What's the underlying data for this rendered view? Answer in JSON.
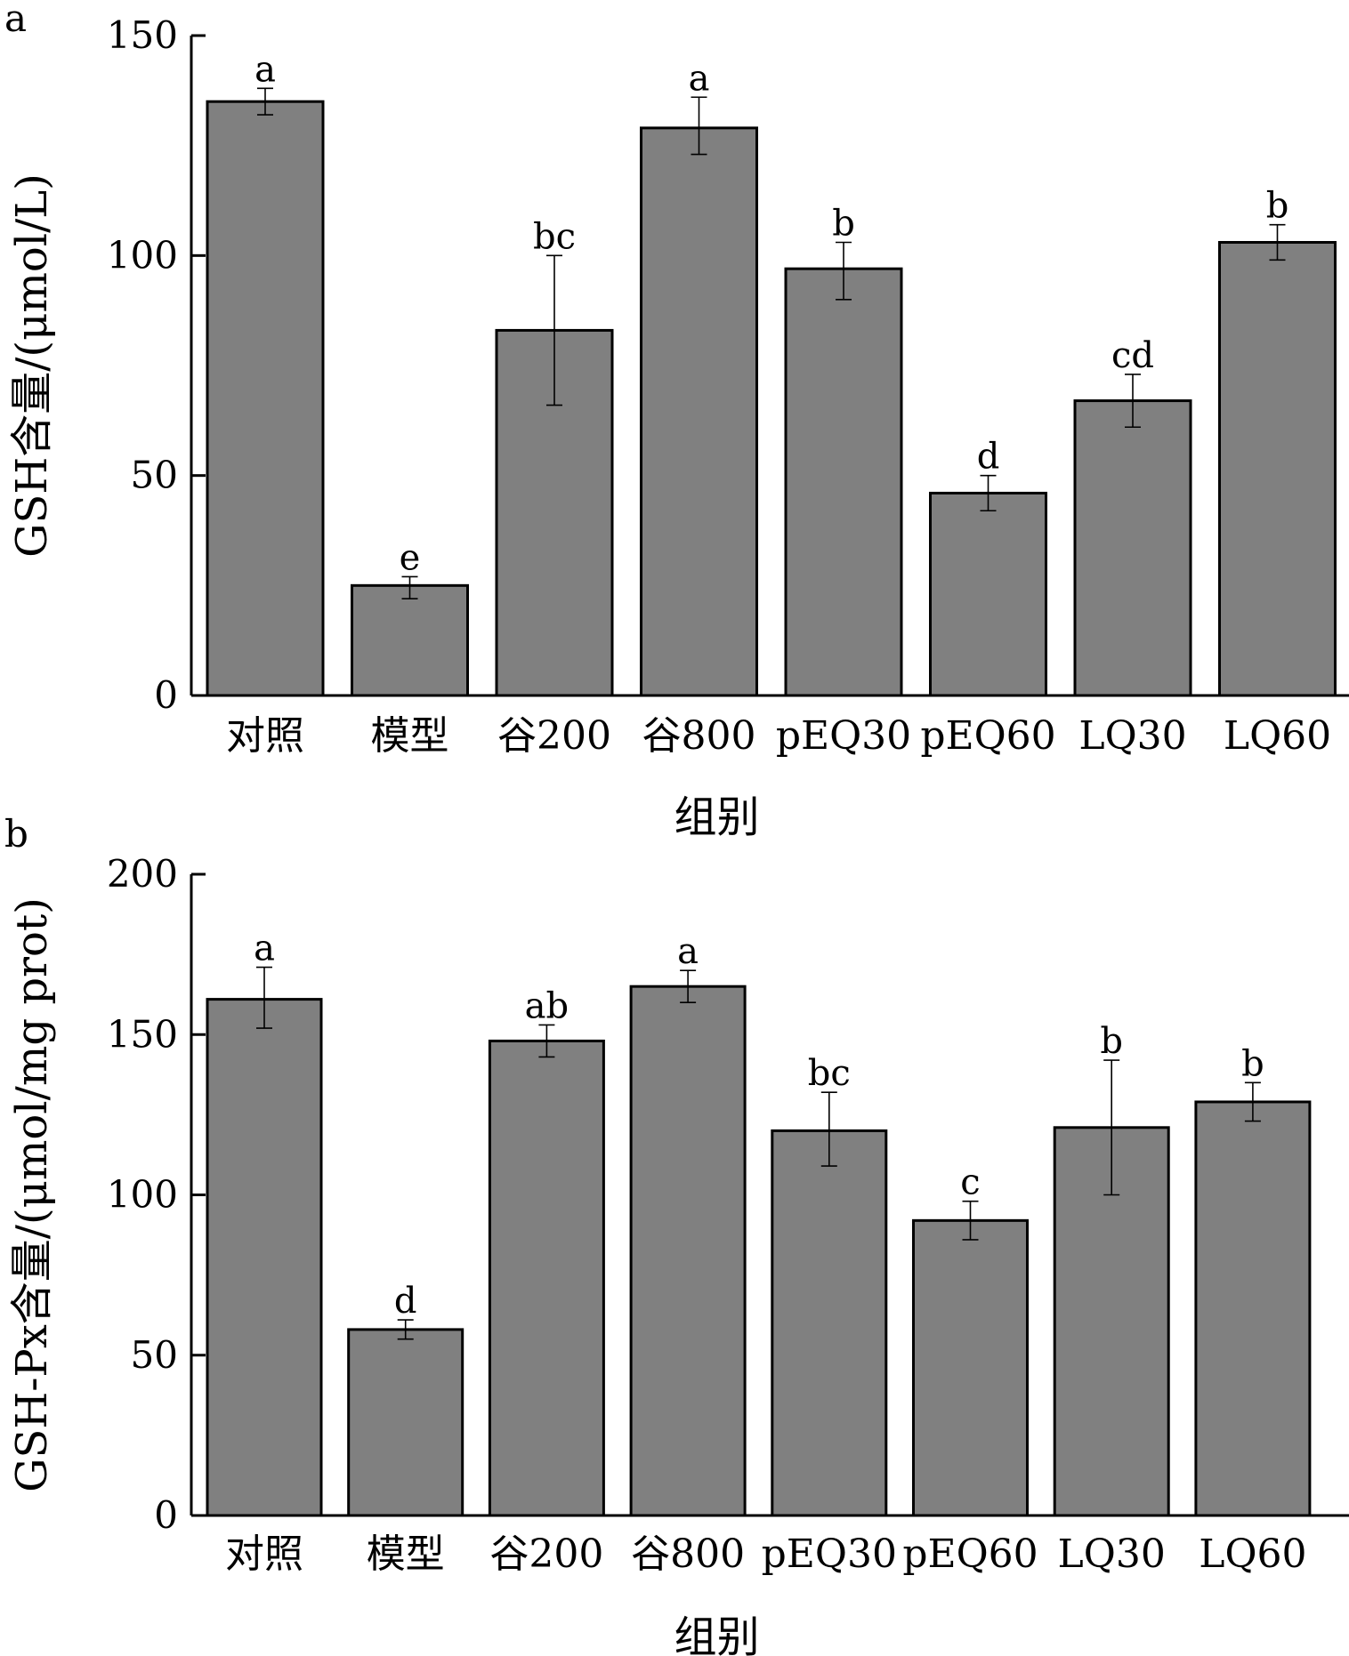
{
  "chart_data": [
    {
      "panel": "a",
      "type": "bar",
      "title": "",
      "xlabel": "组别",
      "ylabel": "GSH含量/(μmol/L)",
      "ylim": [
        0,
        150
      ],
      "yticks": [
        0,
        50,
        100,
        150
      ],
      "categories": [
        "对照",
        "模型",
        "谷200",
        "谷800",
        "pEQ30",
        "pEQ60",
        "LQ30",
        "LQ60"
      ],
      "values": [
        135,
        25,
        83,
        129,
        97,
        46,
        67,
        103
      ],
      "error_low": [
        132,
        22,
        66,
        123,
        90,
        42,
        61,
        99
      ],
      "error_high": [
        138,
        27,
        100,
        136,
        103,
        50,
        73,
        107
      ],
      "significance": [
        "a",
        "e",
        "bc",
        "a",
        "b",
        "d",
        "cd",
        "b"
      ]
    },
    {
      "panel": "b",
      "type": "bar",
      "title": "",
      "xlabel": "组别",
      "ylabel": "GSH-Px含量/(μmol/mg prot)",
      "ylim": [
        0,
        200
      ],
      "yticks": [
        0,
        50,
        100,
        150,
        200
      ],
      "categories": [
        "对照",
        "模型",
        "谷200",
        "谷800",
        "pEQ30",
        "pEQ60",
        "LQ30",
        "LQ60"
      ],
      "values": [
        161,
        58,
        148,
        165,
        120,
        92,
        121,
        129
      ],
      "error_low": [
        152,
        55,
        143,
        160,
        109,
        86,
        100,
        123
      ],
      "error_high": [
        171,
        61,
        153,
        170,
        132,
        98,
        142,
        135
      ],
      "significance": [
        "a",
        "d",
        "ab",
        "a",
        "bc",
        "c",
        "b",
        "b"
      ]
    }
  ]
}
